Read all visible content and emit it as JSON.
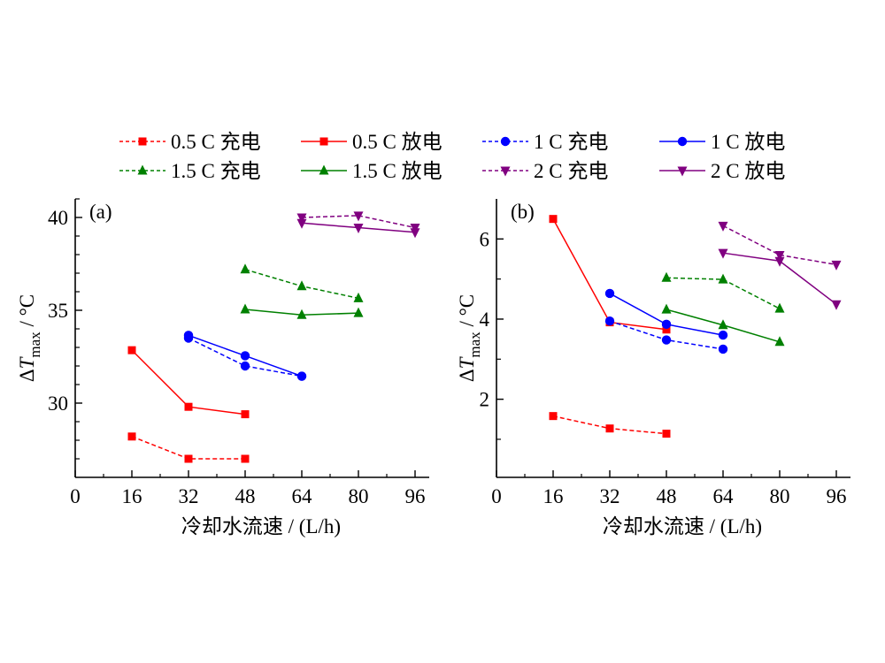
{
  "chart_data": [
    {
      "type": "line",
      "panel_label": "(a)",
      "xlabel": "冷却水流速 / (L/h)",
      "ylabel_prefix": "ΔT",
      "ylabel_sub": "max",
      "ylabel_suffix": " / °C",
      "xlim": [
        0,
        100
      ],
      "ylim": [
        26,
        41
      ],
      "xticks": [
        0,
        16,
        32,
        48,
        64,
        80,
        96
      ],
      "xminor": [
        8,
        24,
        40,
        56,
        72,
        88
      ],
      "yticks": [
        30,
        35,
        40
      ],
      "yminor": [
        27,
        28,
        29,
        31,
        32,
        33,
        34,
        36,
        37,
        38,
        39,
        41
      ],
      "grid": false,
      "series": [
        {
          "name": "0.5 C 充电",
          "color": "#ff0000",
          "dash": true,
          "marker": "square",
          "x": [
            16,
            32,
            48
          ],
          "y": [
            28.2,
            27.0,
            27.0
          ]
        },
        {
          "name": "0.5 C 放电",
          "color": "#ff0000",
          "dash": false,
          "marker": "square",
          "x": [
            16,
            32,
            48
          ],
          "y": [
            32.85,
            29.8,
            29.4
          ]
        },
        {
          "name": "1 C 充电",
          "color": "#0000ff",
          "dash": true,
          "marker": "circle",
          "x": [
            32,
            48,
            64
          ],
          "y": [
            33.5,
            32.0,
            31.45
          ]
        },
        {
          "name": "1 C 放电",
          "color": "#0000ff",
          "dash": false,
          "marker": "circle",
          "x": [
            32,
            48,
            64
          ],
          "y": [
            33.65,
            32.55,
            31.45
          ]
        },
        {
          "name": "1.5 C 充电",
          "color": "#008000",
          "dash": true,
          "marker": "triangle-up",
          "x": [
            48,
            64,
            80
          ],
          "y": [
            37.2,
            36.3,
            35.65
          ]
        },
        {
          "name": "1.5 C 放电",
          "color": "#008000",
          "dash": false,
          "marker": "triangle-up",
          "x": [
            48,
            64,
            80
          ],
          "y": [
            35.05,
            34.75,
            34.85
          ]
        },
        {
          "name": "2 C 充电",
          "color": "#800080",
          "dash": true,
          "marker": "triangle-down",
          "x": [
            64,
            80,
            96
          ],
          "y": [
            40.0,
            40.1,
            39.45
          ]
        },
        {
          "name": "2 C 放电",
          "color": "#800080",
          "dash": false,
          "marker": "triangle-down",
          "x": [
            64,
            80,
            96
          ],
          "y": [
            39.7,
            39.45,
            39.2
          ]
        }
      ]
    },
    {
      "type": "line",
      "panel_label": "(b)",
      "xlabel": "冷却水流速 / (L/h)",
      "ylabel_prefix": "ΔT",
      "ylabel_sub": "max",
      "ylabel_suffix": " / °C",
      "xlim": [
        0,
        100
      ],
      "ylim": [
        0.05,
        7.0
      ],
      "xticks": [
        0,
        16,
        32,
        48,
        64,
        80,
        96
      ],
      "xminor": [
        8,
        24,
        40,
        56,
        72,
        88
      ],
      "yticks": [
        2,
        4,
        6
      ],
      "yminor": [
        1,
        3,
        5
      ],
      "grid": false,
      "series": [
        {
          "name": "0.5 C 充电",
          "color": "#ff0000",
          "dash": true,
          "marker": "square",
          "x": [
            16,
            32,
            48
          ],
          "y": [
            1.58,
            1.27,
            1.14
          ]
        },
        {
          "name": "0.5 C 放电",
          "color": "#ff0000",
          "dash": false,
          "marker": "square",
          "x": [
            16,
            32,
            48
          ],
          "y": [
            6.5,
            3.92,
            3.74
          ]
        },
        {
          "name": "1 C 充电",
          "color": "#0000ff",
          "dash": true,
          "marker": "circle",
          "x": [
            32,
            48,
            64
          ],
          "y": [
            3.95,
            3.48,
            3.25
          ]
        },
        {
          "name": "1 C 放电",
          "color": "#0000ff",
          "dash": false,
          "marker": "circle",
          "x": [
            32,
            48,
            64
          ],
          "y": [
            4.64,
            3.87,
            3.6
          ]
        },
        {
          "name": "1.5 C 充电",
          "color": "#008000",
          "dash": true,
          "marker": "triangle-up",
          "x": [
            48,
            64,
            80
          ],
          "y": [
            5.03,
            4.99,
            4.26
          ]
        },
        {
          "name": "1.5 C 放电",
          "color": "#008000",
          "dash": false,
          "marker": "triangle-up",
          "x": [
            48,
            64,
            80
          ],
          "y": [
            4.24,
            3.85,
            3.43
          ]
        },
        {
          "name": "2 C 充电",
          "color": "#800080",
          "dash": true,
          "marker": "triangle-down",
          "x": [
            64,
            80,
            96
          ],
          "y": [
            6.33,
            5.6,
            5.36
          ]
        },
        {
          "name": "2 C 放电",
          "color": "#800080",
          "dash": false,
          "marker": "triangle-down",
          "x": [
            64,
            80,
            96
          ],
          "y": [
            5.65,
            5.45,
            4.37
          ]
        }
      ]
    }
  ],
  "legend": {
    "placement": "top-center",
    "columns": 4,
    "entries": [
      "0.5 C 充电",
      "0.5 C 放电",
      "1 C 充电",
      "1 C 放电",
      "1.5 C 充电",
      "1.5 C 放电",
      "2 C 充电",
      "2 C 放电"
    ]
  }
}
